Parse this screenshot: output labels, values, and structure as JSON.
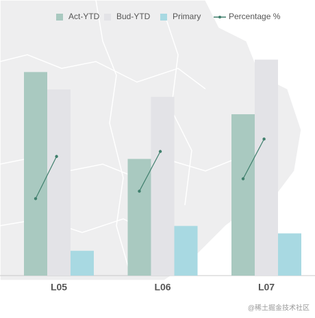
{
  "chart_data": {
    "type": "bar",
    "categories": [
      "L05",
      "L06",
      "L07"
    ],
    "series": [
      {
        "name": "Act-YTD",
        "color": "#a9c9c0",
        "values": [
          82,
          47,
          65
        ]
      },
      {
        "name": "Bud-YTD",
        "color": "#e3e3e7",
        "values": [
          75,
          72,
          87
        ]
      },
      {
        "name": "Primary",
        "color": "#a8d9e2",
        "values": [
          10,
          20,
          17
        ]
      },
      {
        "name": "Percentage  %",
        "type": "line",
        "color": "#3f7f6c",
        "values": [
          [
            31,
            48
          ],
          [
            34,
            50
          ],
          [
            39,
            55
          ]
        ]
      }
    ],
    "watermark": "@稀土掘金技术社区"
  }
}
